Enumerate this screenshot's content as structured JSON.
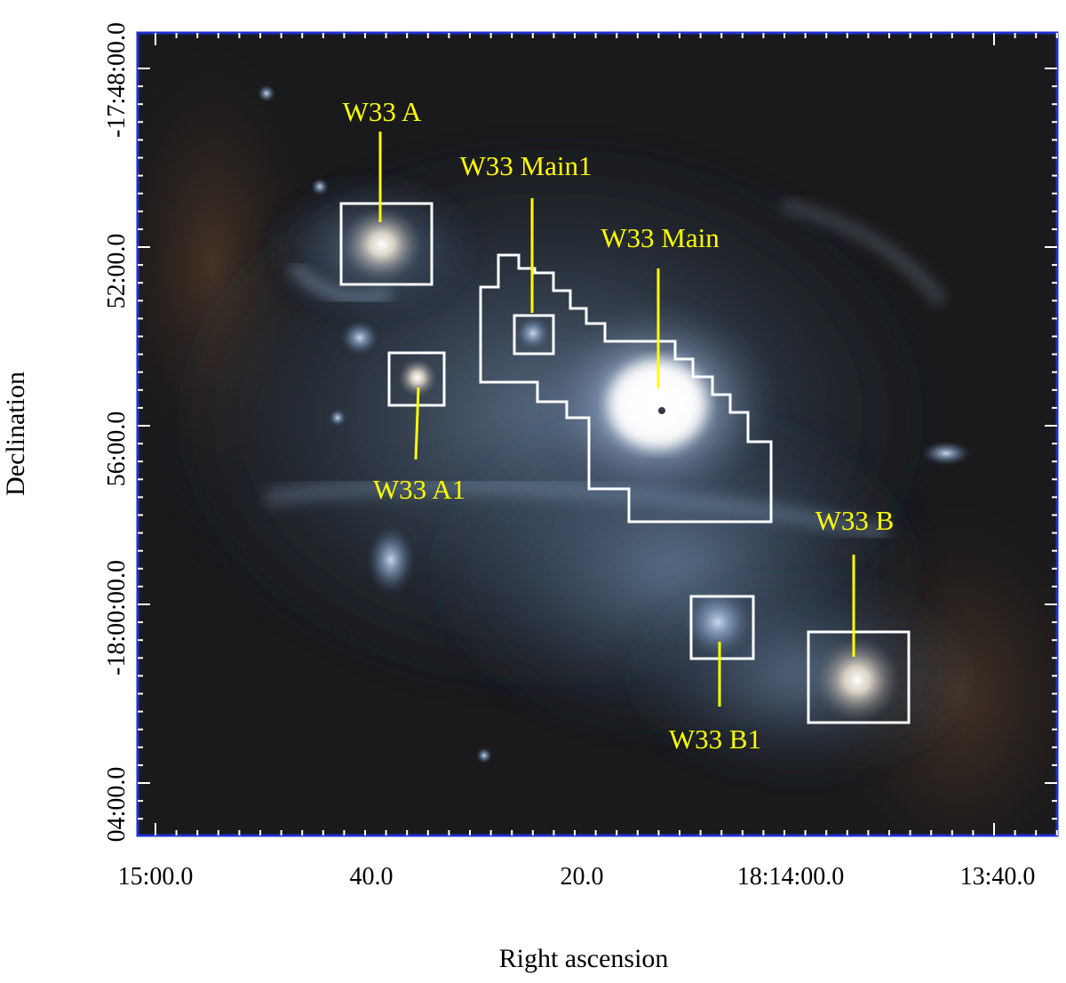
{
  "figure": {
    "x_axis_title": "Right ascension",
    "y_axis_title": "Declination",
    "x_tick_labels": [
      "15:00.0",
      "40.0",
      "20.0",
      "18:14:00.0",
      "13:40.0"
    ],
    "y_tick_labels": [
      "-17:48:00.0",
      "52:00.0",
      "56:00.0",
      "-18:00:00.0",
      "04:00.0"
    ]
  },
  "regions": [
    {
      "id": "w33a",
      "label": "W33 A"
    },
    {
      "id": "w33main1",
      "label": "W33 Main1"
    },
    {
      "id": "w33main",
      "label": "W33 Main"
    },
    {
      "id": "w33a1",
      "label": "W33 A1"
    },
    {
      "id": "w33b",
      "label": "W33 B"
    },
    {
      "id": "w33b1",
      "label": "W33 B1"
    }
  ],
  "colors": {
    "label": "#ffff00",
    "region_outline": "#ffffff",
    "frame": "#1f2fd0"
  }
}
